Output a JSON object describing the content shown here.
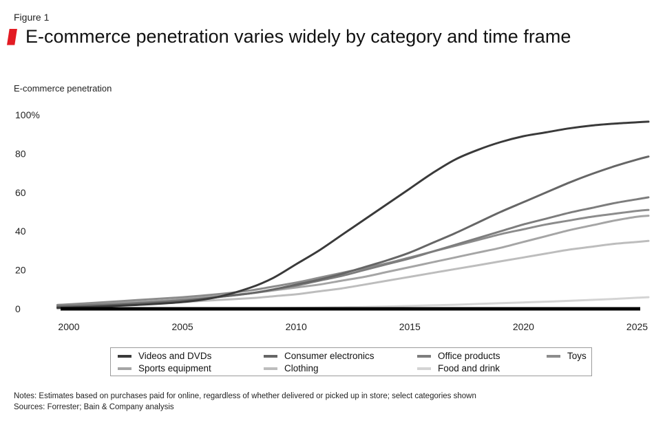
{
  "figure_label": "Figure 1",
  "chart_data": {
    "type": "line",
    "title": "E-commerce penetration varies widely by category and time frame",
    "ylabel": "E-commerce penetration",
    "xlabel": "",
    "xlim": [
      2000,
      2025.5
    ],
    "ylim": [
      0,
      100
    ],
    "x_ticks": [
      {
        "value": 2000,
        "label": "2000"
      },
      {
        "value": 2005,
        "label": "2005"
      },
      {
        "value": 2010,
        "label": "2010"
      },
      {
        "value": 2015,
        "label": "2015"
      },
      {
        "value": 2020,
        "label": "2020"
      },
      {
        "value": 2025,
        "label": "2025"
      }
    ],
    "y_ticks": [
      {
        "value": 0,
        "label": "0"
      },
      {
        "value": 20,
        "label": "20"
      },
      {
        "value": 40,
        "label": "40"
      },
      {
        "value": 60,
        "label": "60"
      },
      {
        "value": 80,
        "label": "80"
      },
      {
        "value": 100,
        "label": "100%"
      }
    ],
    "x": [
      1999.5,
      2001,
      2003,
      2005,
      2006.5,
      2008,
      2009,
      2010,
      2011,
      2012,
      2013,
      2014,
      2015,
      2016,
      2017,
      2018,
      2019,
      2020,
      2021,
      2022,
      2023,
      2024,
      2025,
      2025.5
    ],
    "series": [
      {
        "name": "Videos and DVDs",
        "color": "#3a3a3a",
        "values": [
          0.5,
          1,
          2,
          3.5,
          6,
          11,
          16,
          23,
          30,
          38,
          46,
          54,
          62,
          70,
          77,
          82,
          86,
          89,
          91,
          93,
          94.5,
          95.5,
          96.2,
          96.5
        ]
      },
      {
        "name": "Consumer electronics",
        "color": "#666666",
        "values": [
          1,
          1.5,
          2.5,
          4,
          6,
          8,
          10,
          12.5,
          15,
          18,
          21.5,
          25,
          29,
          34,
          39,
          44.5,
          50,
          55,
          60,
          65,
          69.5,
          73.5,
          77,
          78.5
        ]
      },
      {
        "name": "Office products",
        "color": "#7d7d7d",
        "values": [
          1.5,
          2,
          3,
          4.5,
          6,
          8,
          10,
          12,
          14.5,
          17,
          20,
          23,
          26,
          29.5,
          33,
          36.5,
          40,
          43.5,
          46.5,
          49.5,
          52,
          54.5,
          56.5,
          57.5
        ]
      },
      {
        "name": "Toys",
        "color": "#8c8c8c",
        "values": [
          2,
          3,
          4.5,
          6,
          7.5,
          9.5,
          11.5,
          13.5,
          16,
          18.5,
          21,
          23.5,
          26.5,
          29.5,
          32.5,
          35.5,
          38.5,
          41,
          43.5,
          45.5,
          47.5,
          49,
          50.5,
          51
        ]
      },
      {
        "name": "Sports equipment",
        "color": "#a5a5a5",
        "values": [
          2,
          2.5,
          3.5,
          5,
          6.5,
          8,
          9.5,
          11,
          12.5,
          14.5,
          16.5,
          19,
          21.5,
          24,
          26.5,
          29,
          31.5,
          34.5,
          37.5,
          40.5,
          43,
          45.5,
          47.5,
          48
        ]
      },
      {
        "name": "Clothing",
        "color": "#bdbdbd",
        "values": [
          1,
          1.5,
          2.5,
          3.5,
          4.5,
          5.5,
          6.5,
          7.5,
          9,
          10.5,
          12.5,
          14.5,
          16.5,
          18.5,
          20.5,
          22.5,
          24.5,
          26.5,
          28.5,
          30.5,
          32,
          33.5,
          34.5,
          35
        ]
      },
      {
        "name": "Food and drink",
        "color": "#d4d4d4",
        "values": [
          0,
          0,
          0,
          0.1,
          0.2,
          0.3,
          0.4,
          0.5,
          0.6,
          0.8,
          1,
          1.2,
          1.5,
          1.8,
          2.1,
          2.5,
          2.9,
          3.3,
          3.7,
          4.1,
          4.6,
          5.1,
          5.7,
          6
        ]
      }
    ]
  },
  "notes": {
    "line1": "Notes: Estimates based on purchases paid for online, regardless of whether delivered or picked up in store; select categories shown",
    "line2": "Sources: Forrester; Bain & Company analysis"
  }
}
